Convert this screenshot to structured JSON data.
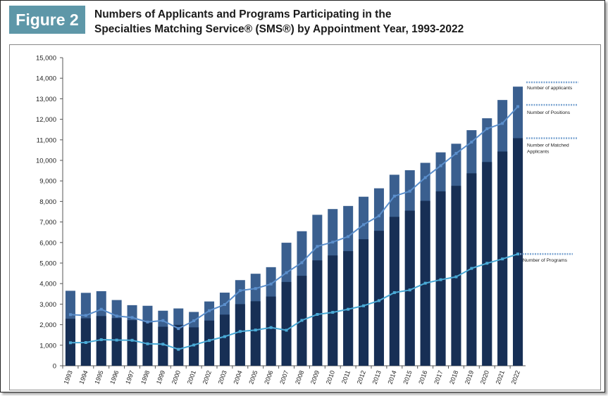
{
  "figure_label": "Figure 2",
  "title_line1": "Numbers of Applicants and Programs Participating in the",
  "title_line2": "Specialties Matching Service® (SMS®) by Appointment Year, 1993-2022",
  "colors": {
    "figure_tag": "#5e97a8",
    "applicants_bar": "#3a5f8f",
    "matched_bar": "#172f55",
    "positions_line": "#5b8fcc",
    "programs_line": "#4aaad6",
    "label_dash": "#7ea6d2"
  },
  "chart_data": {
    "type": "bar",
    "title": "Numbers of Applicants and Programs Participating in the Specialties Matching Service® (SMS®) by Appointment Year, 1993-2022",
    "xlabel": "",
    "ylabel": "",
    "ylim": [
      0,
      15000
    ],
    "yticks": [
      0,
      1000,
      2000,
      3000,
      4000,
      5000,
      6000,
      7000,
      8000,
      9000,
      10000,
      11000,
      12000,
      13000,
      14000,
      15000
    ],
    "ytick_labels": [
      "0",
      "1,000",
      "2,000",
      "3,000",
      "4,000",
      "5,000",
      "6,000",
      "7,000",
      "8,000",
      "9,000",
      "10,000",
      "11,000",
      "12,000",
      "13,000",
      "14,000",
      "15,000"
    ],
    "grid": false,
    "categories": [
      "1993",
      "1994",
      "1995",
      "1996",
      "1997",
      "1998",
      "1999",
      "2000",
      "2001",
      "2002",
      "2003",
      "2004",
      "2005",
      "2006",
      "2007",
      "2008",
      "2009",
      "2010",
      "2011",
      "2012",
      "2013",
      "2014",
      "2015",
      "2016",
      "2017",
      "2018",
      "2019",
      "2020",
      "2021",
      "2022"
    ],
    "series": [
      {
        "name": "Number of applicants",
        "kind": "bar",
        "values": [
          3650,
          3550,
          3630,
          3200,
          2950,
          2920,
          2680,
          2790,
          2620,
          3130,
          3560,
          4170,
          4480,
          4800,
          5990,
          6550,
          7350,
          7630,
          7780,
          8230,
          8640,
          9300,
          9520,
          9880,
          10390,
          10810,
          11470,
          12050,
          12940,
          13590
        ]
      },
      {
        "name": "Number of Matched Applicants",
        "kind": "bar",
        "values": [
          2290,
          2310,
          2420,
          2320,
          2220,
          2150,
          1900,
          1990,
          1870,
          2200,
          2490,
          3000,
          3140,
          3370,
          4080,
          4380,
          5130,
          5370,
          5580,
          6160,
          6570,
          7250,
          7550,
          8030,
          8490,
          8760,
          9370,
          9920,
          10430,
          11080
        ]
      },
      {
        "name": "Number of Positions",
        "kind": "line",
        "values": [
          2490,
          2450,
          2750,
          2420,
          2350,
          2130,
          2200,
          1810,
          2190,
          2680,
          2980,
          3660,
          3760,
          3980,
          4530,
          5020,
          5810,
          6020,
          6290,
          6870,
          7300,
          8260,
          8500,
          9160,
          9740,
          10340,
          10890,
          11540,
          11800,
          12620
        ]
      },
      {
        "name": "Number of Programs",
        "kind": "line",
        "values": [
          1120,
          1130,
          1270,
          1250,
          1240,
          1070,
          1050,
          800,
          1010,
          1230,
          1420,
          1670,
          1740,
          1860,
          1730,
          2210,
          2500,
          2600,
          2750,
          2920,
          3170,
          3560,
          3690,
          4020,
          4190,
          4330,
          4740,
          4990,
          5200,
          5440
        ]
      }
    ]
  }
}
